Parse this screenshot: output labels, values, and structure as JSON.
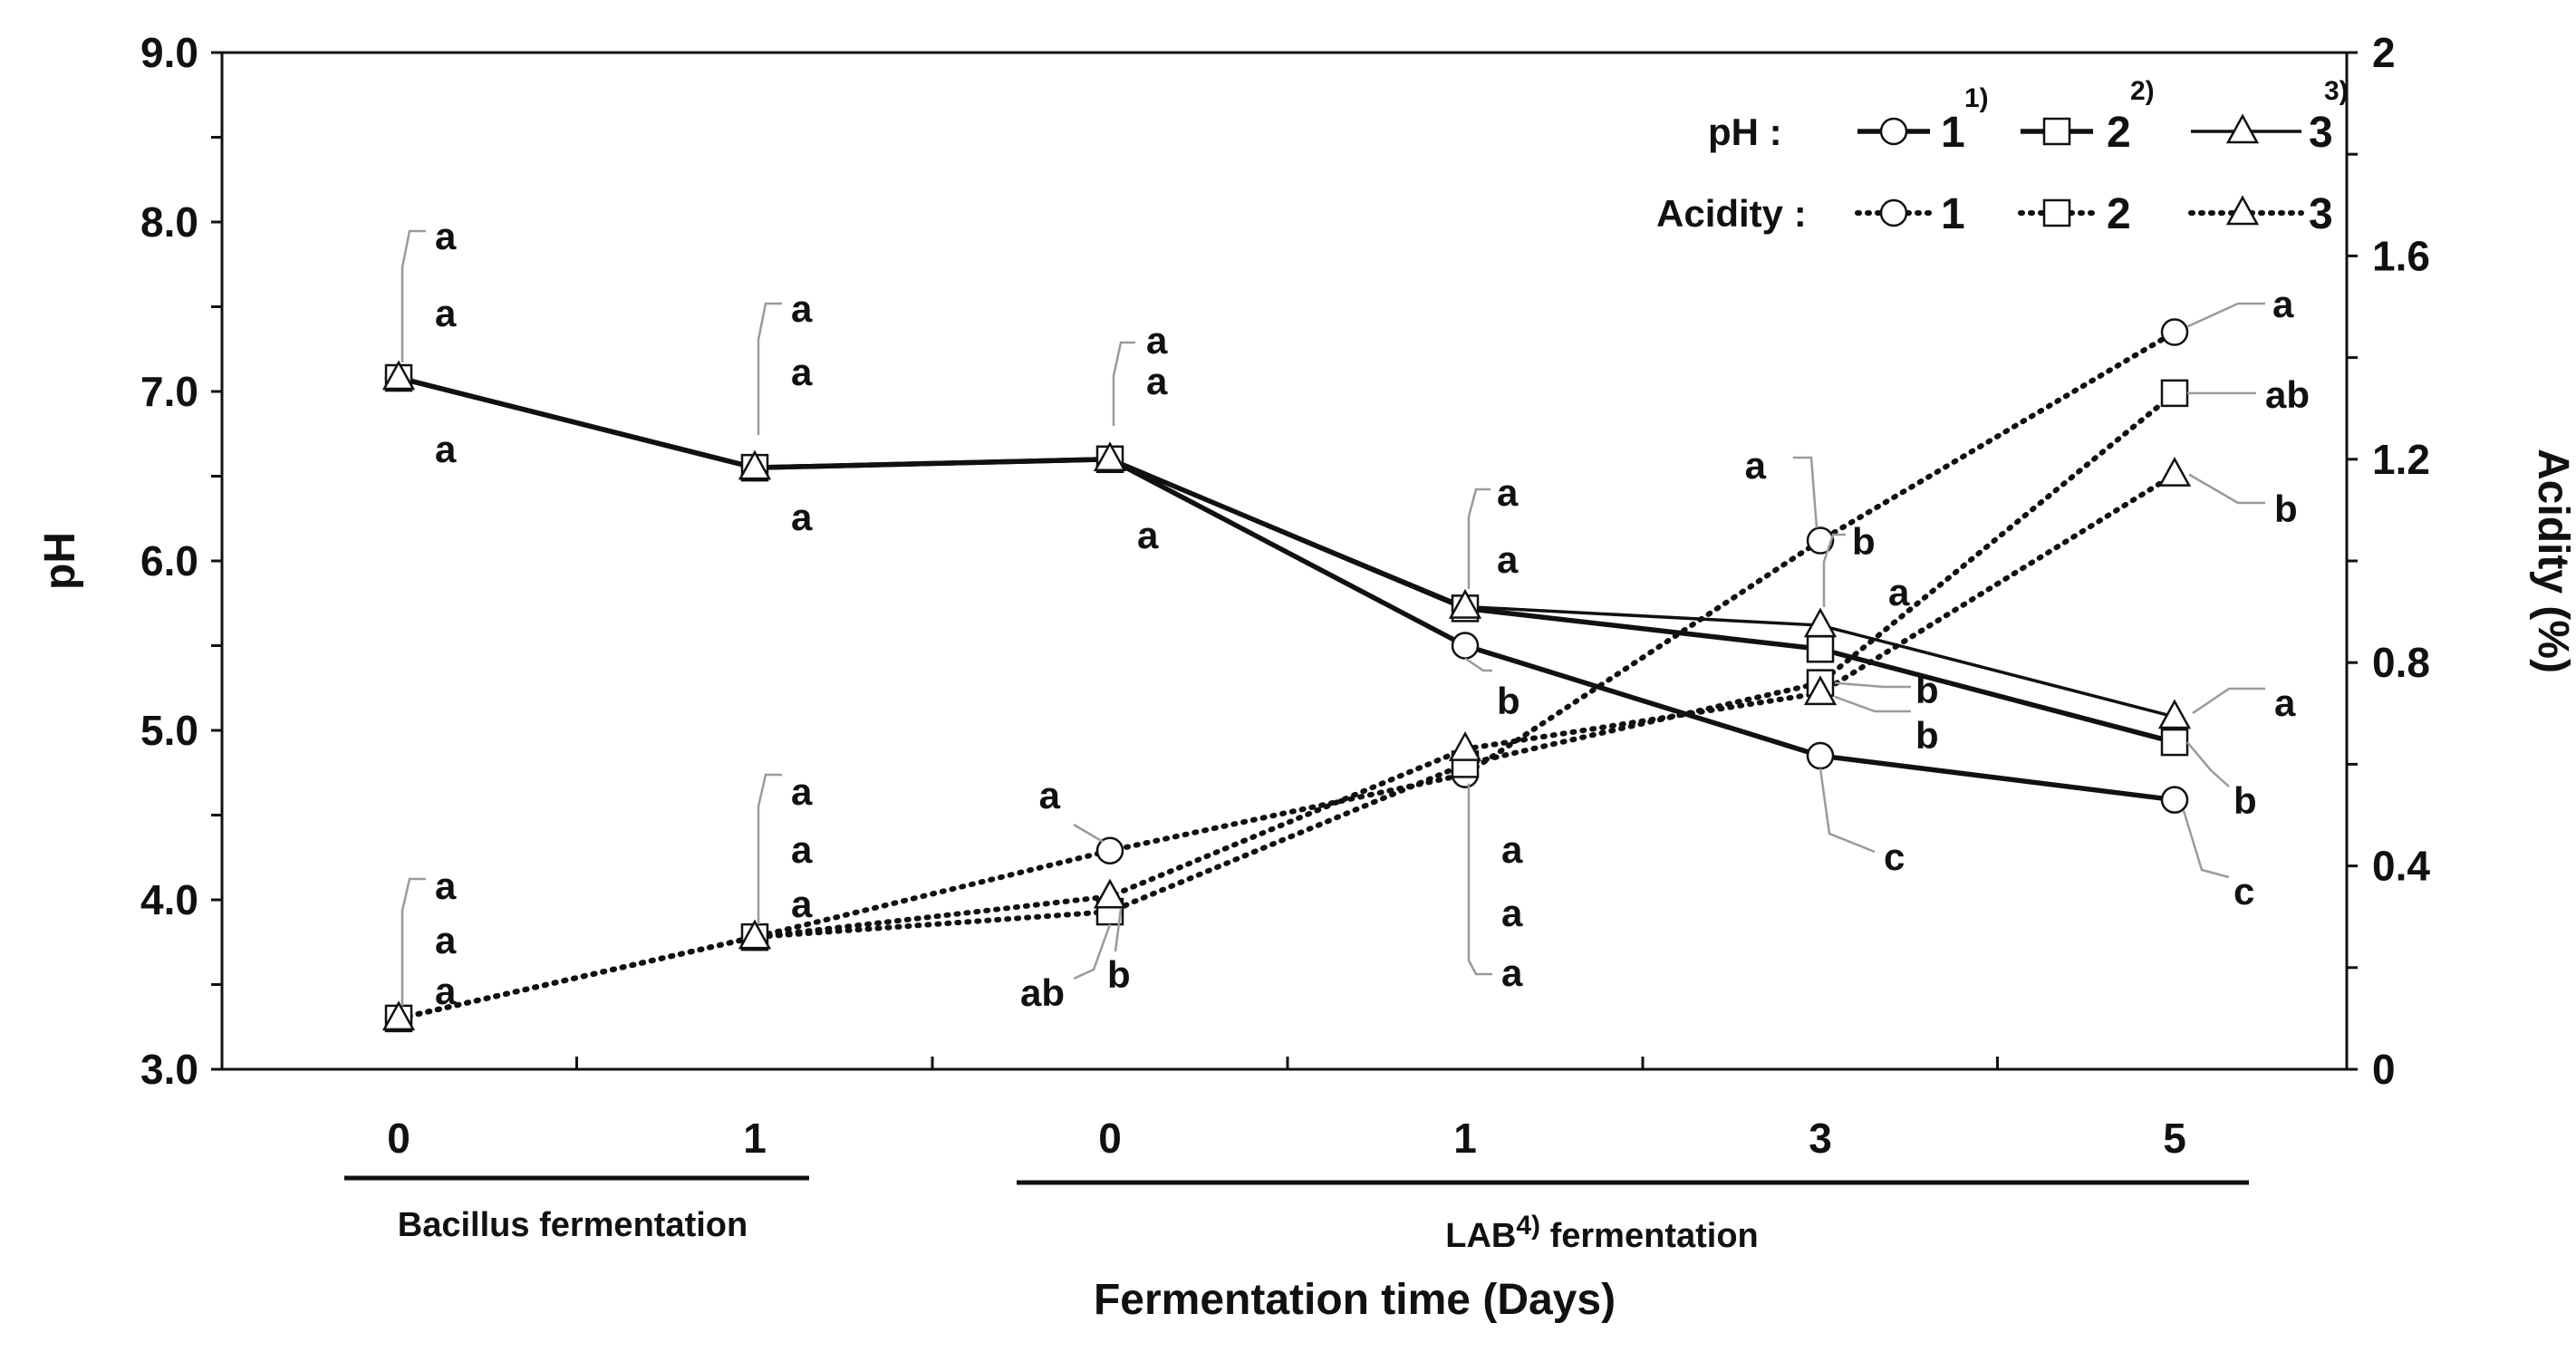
{
  "chart_data": {
    "type": "line",
    "title": "",
    "xlabel": "Fermentation time (Days)",
    "ylabel": "pH",
    "ylabel_right": "Acidity (%)",
    "ylim": [
      3.0,
      9.0
    ],
    "ylim_right": [
      0,
      2
    ],
    "yticks": [
      "3.0",
      "4.0",
      "5.0",
      "6.0",
      "7.0",
      "8.0",
      "9.0"
    ],
    "yticks_right": [
      "0",
      "0.4",
      "0.8",
      "1.2",
      "1.6",
      "2"
    ],
    "categories": [
      "0",
      "1",
      "0",
      "1",
      "3",
      "5"
    ],
    "groups": [
      {
        "label": "Bacillus fermentation",
        "from": 0,
        "to": 1
      },
      {
        "label": "LAB",
        "sup": "4)",
        "suffix": " fermentation",
        "from": 2,
        "to": 5
      }
    ],
    "legend": {
      "ph_label": "pH :",
      "acidity_label": "Acidity :",
      "entries": [
        {
          "name": "1",
          "sup": "1)",
          "marker": "circle"
        },
        {
          "name": "2",
          "sup": "2)",
          "marker": "square"
        },
        {
          "name": "3",
          "sup": "3)",
          "marker": "triangle"
        }
      ]
    },
    "series": [
      {
        "name": "pH 1",
        "axis": "left",
        "style": "solid",
        "marker": "circle",
        "values": [
          7.08,
          6.55,
          6.6,
          5.5,
          4.85,
          4.59
        ],
        "labels": [
          "a",
          "a",
          "a",
          "b",
          "c",
          "c"
        ]
      },
      {
        "name": "pH 2",
        "axis": "left",
        "style": "solid",
        "marker": "square",
        "values": [
          7.08,
          6.55,
          6.6,
          5.72,
          5.48,
          4.93
        ],
        "labels": [
          "a",
          "a",
          "a",
          "a",
          "b",
          "b"
        ]
      },
      {
        "name": "pH 3",
        "axis": "left",
        "style": "solid",
        "marker": "triangle",
        "values": [
          7.08,
          6.55,
          6.6,
          5.73,
          5.62,
          5.08
        ],
        "labels": [
          "a",
          "a",
          "a",
          "a",
          "a",
          "a"
        ]
      },
      {
        "name": "Acidity 1",
        "axis": "right",
        "style": "dotted",
        "marker": "circle",
        "values": [
          0.1,
          0.26,
          0.43,
          0.58,
          1.04,
          1.45
        ],
        "labels": [
          "a",
          "a",
          "a",
          "a",
          "a",
          "a"
        ]
      },
      {
        "name": "Acidity 2",
        "axis": "right",
        "style": "dotted",
        "marker": "square",
        "values": [
          0.1,
          0.26,
          0.31,
          0.6,
          0.76,
          1.33
        ],
        "labels": [
          "a",
          "a",
          "ab",
          "a",
          "b",
          "ab"
        ]
      },
      {
        "name": "Acidity 3",
        "axis": "right",
        "style": "dotted",
        "marker": "triangle",
        "values": [
          0.1,
          0.26,
          0.34,
          0.63,
          0.74,
          1.17
        ],
        "labels": [
          "a",
          "a",
          "b",
          "a",
          "b",
          "b"
        ]
      }
    ]
  }
}
